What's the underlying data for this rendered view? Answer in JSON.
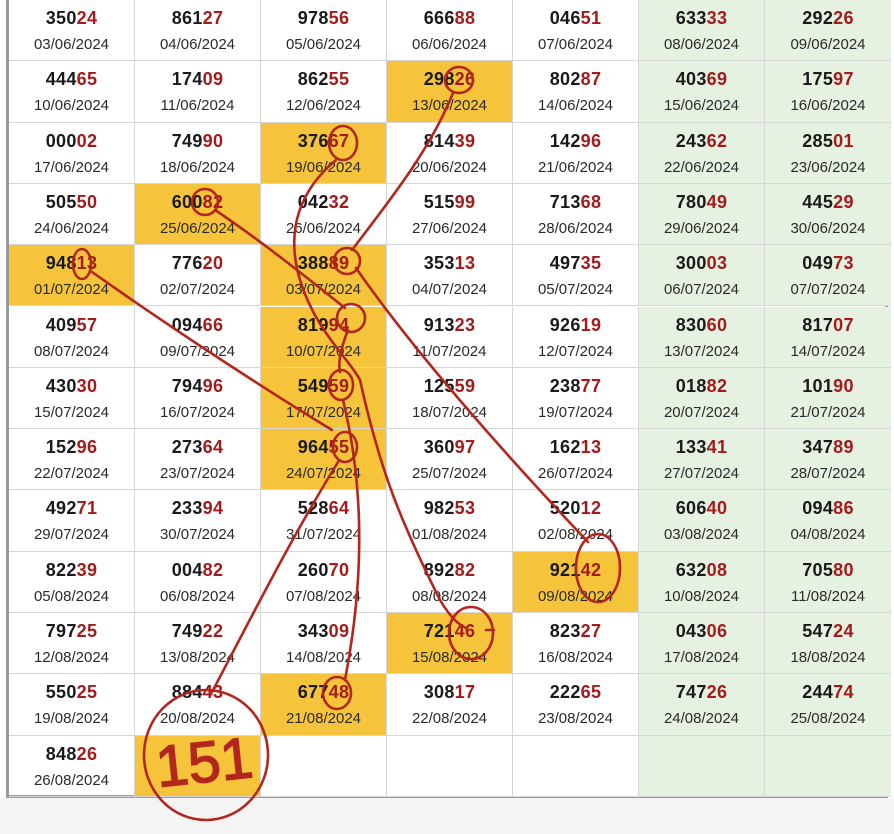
{
  "colors": {
    "highlight": "#f5c43a",
    "weekend": "#e6f2e1",
    "digits_prefix": "#1a1a1a",
    "digits_suffix": "#a31b1b",
    "annotation": "#b3261e"
  },
  "annotation_text": "151",
  "rows": [
    [
      {
        "n": "35024",
        "d": "03/06/2024"
      },
      {
        "n": "86127",
        "d": "04/06/2024"
      },
      {
        "n": "97856",
        "d": "05/06/2024"
      },
      {
        "n": "66688",
        "d": "06/06/2024"
      },
      {
        "n": "04651",
        "d": "07/06/2024"
      },
      {
        "n": "63333",
        "d": "08/06/2024"
      },
      {
        "n": "29226",
        "d": "09/06/2024"
      }
    ],
    [
      {
        "n": "44465",
        "d": "10/06/2024"
      },
      {
        "n": "17409",
        "d": "11/06/2024"
      },
      {
        "n": "86255",
        "d": "12/06/2024"
      },
      {
        "n": "29826",
        "d": "13/06/2024",
        "hl": true
      },
      {
        "n": "80287",
        "d": "14/06/2024"
      },
      {
        "n": "40369",
        "d": "15/06/2024"
      },
      {
        "n": "17597",
        "d": "16/06/2024"
      }
    ],
    [
      {
        "n": "00002",
        "d": "17/06/2024"
      },
      {
        "n": "74990",
        "d": "18/06/2024"
      },
      {
        "n": "37667",
        "d": "19/06/2024",
        "hl": true
      },
      {
        "n": "81439",
        "d": "20/06/2024"
      },
      {
        "n": "14296",
        "d": "21/06/2024"
      },
      {
        "n": "24362",
        "d": "22/06/2024"
      },
      {
        "n": "28501",
        "d": "23/06/2024"
      }
    ],
    [
      {
        "n": "50550",
        "d": "24/06/2024"
      },
      {
        "n": "60082",
        "d": "25/06/2024",
        "hl": true
      },
      {
        "n": "04232",
        "d": "26/06/2024"
      },
      {
        "n": "51599",
        "d": "27/06/2024"
      },
      {
        "n": "71368",
        "d": "28/06/2024"
      },
      {
        "n": "78049",
        "d": "29/06/2024"
      },
      {
        "n": "44529",
        "d": "30/06/2024"
      }
    ],
    [
      {
        "n": "94813",
        "d": "01/07/2024",
        "hl": true
      },
      {
        "n": "77620",
        "d": "02/07/2024"
      },
      {
        "n": "38889",
        "d": "03/07/2024",
        "hl": true
      },
      {
        "n": "35313",
        "d": "04/07/2024"
      },
      {
        "n": "49735",
        "d": "05/07/2024"
      },
      {
        "n": "30003",
        "d": "06/07/2024"
      },
      {
        "n": "04973",
        "d": "07/07/2024"
      }
    ],
    [
      {
        "n": "40957",
        "d": "08/07/2024"
      },
      {
        "n": "09466",
        "d": "09/07/2024"
      },
      {
        "n": "81994",
        "d": "10/07/2024",
        "hl": true
      },
      {
        "n": "91323",
        "d": "11/07/2024"
      },
      {
        "n": "92619",
        "d": "12/07/2024"
      },
      {
        "n": "83060",
        "d": "13/07/2024"
      },
      {
        "n": "81707",
        "d": "14/07/2024"
      }
    ],
    [
      {
        "n": "43030",
        "d": "15/07/2024"
      },
      {
        "n": "79496",
        "d": "16/07/2024"
      },
      {
        "n": "54959",
        "d": "17/07/2024",
        "hl": true
      },
      {
        "n": "12559",
        "d": "18/07/2024"
      },
      {
        "n": "23877",
        "d": "19/07/2024"
      },
      {
        "n": "01882",
        "d": "20/07/2024"
      },
      {
        "n": "10190",
        "d": "21/07/2024"
      }
    ],
    [
      {
        "n": "15296",
        "d": "22/07/2024"
      },
      {
        "n": "27364",
        "d": "23/07/2024"
      },
      {
        "n": "96455",
        "d": "24/07/2024",
        "hl": true
      },
      {
        "n": "36097",
        "d": "25/07/2024"
      },
      {
        "n": "16213",
        "d": "26/07/2024"
      },
      {
        "n": "13341",
        "d": "27/07/2024"
      },
      {
        "n": "34789",
        "d": "28/07/2024"
      }
    ],
    [
      {
        "n": "49271",
        "d": "29/07/2024"
      },
      {
        "n": "23394",
        "d": "30/07/2024"
      },
      {
        "n": "52864",
        "d": "31/07/2024"
      },
      {
        "n": "98253",
        "d": "01/08/2024"
      },
      {
        "n": "52012",
        "d": "02/08/2024"
      },
      {
        "n": "60640",
        "d": "03/08/2024"
      },
      {
        "n": "09486",
        "d": "04/08/2024"
      }
    ],
    [
      {
        "n": "82239",
        "d": "05/08/2024"
      },
      {
        "n": "00482",
        "d": "06/08/2024"
      },
      {
        "n": "26070",
        "d": "07/08/2024"
      },
      {
        "n": "89282",
        "d": "08/08/2024"
      },
      {
        "n": "92142",
        "d": "09/08/2024",
        "hl": true
      },
      {
        "n": "63208",
        "d": "10/08/2024"
      },
      {
        "n": "70580",
        "d": "11/08/2024"
      }
    ],
    [
      {
        "n": "79725",
        "d": "12/08/2024"
      },
      {
        "n": "74922",
        "d": "13/08/2024"
      },
      {
        "n": "34309",
        "d": "14/08/2024"
      },
      {
        "n": "72146",
        "d": "15/08/2024",
        "hl": true
      },
      {
        "n": "82327",
        "d": "16/08/2024"
      },
      {
        "n": "04306",
        "d": "17/08/2024"
      },
      {
        "n": "54724",
        "d": "18/08/2024"
      }
    ],
    [
      {
        "n": "55025",
        "d": "19/08/2024"
      },
      {
        "n": "88443",
        "d": "20/08/2024"
      },
      {
        "n": "67748",
        "d": "21/08/2024",
        "hl": true
      },
      {
        "n": "30817",
        "d": "22/08/2024"
      },
      {
        "n": "22265",
        "d": "23/08/2024"
      },
      {
        "n": "74726",
        "d": "24/08/2024"
      },
      {
        "n": "24474",
        "d": "25/08/2024"
      }
    ],
    [
      {
        "n": "84826",
        "d": "26/08/2024"
      },
      {
        "n": "",
        "d": "",
        "hl": true
      },
      {
        "n": "",
        "d": ""
      },
      {
        "n": "",
        "d": ""
      },
      {
        "n": "",
        "d": ""
      },
      {
        "n": "",
        "d": ""
      },
      {
        "n": "",
        "d": ""
      }
    ]
  ]
}
